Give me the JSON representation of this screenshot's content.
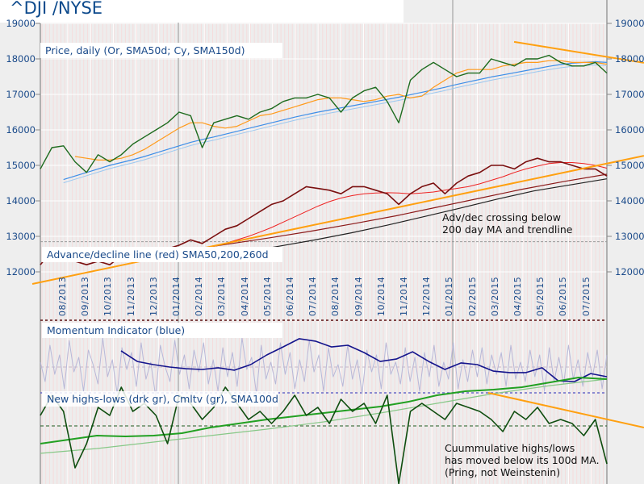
{
  "header": {
    "title": "^DJI /NYSE"
  },
  "panels": {
    "price_label": "Price, daily (Or, SMA50d; Cy, SMA150d)",
    "ad_label": "Advance/decline line (red) SMA50,200,260d",
    "momentum_label": "Momentum Indicator (blue)",
    "hl_label": "New highs-lows (drk gr), Cmltv (gr), SMA100d"
  },
  "annotations": {
    "ad_note": "Adv/dec crossing below\n200 day MA and trendline",
    "hl_note": "Cuummulative highs/lows\nhas moved below its 100d MA.\n(Pring, not Weinstenin)"
  },
  "colors": {
    "title": "#0d4a8c",
    "price": "#1e6b1e",
    "sma50": "#ff9a1a",
    "sma150": "#3d8ee8",
    "ad": "#7a0f0f",
    "ad_sma50": "#ee2222",
    "ad_sma200": "#8b1a1a",
    "ad_sma260": "#222222",
    "trend": "#ffa010",
    "momentum": "#14148c",
    "momentum_raw": "#b8b8d8",
    "hl": "#0f4d0f",
    "hl_cum": "#22a022",
    "hl_sma": "#88c888"
  },
  "chart_data": {
    "type": "line",
    "title": "^DJI /NYSE",
    "x_unit": "months from mid-07/2013",
    "xlim": [
      0,
      24
    ],
    "x_tick_labels": [
      "08/2013",
      "09/2013",
      "10/2013",
      "11/2013",
      "12/2013",
      "01/2014",
      "02/2014",
      "03/2014",
      "04/2014",
      "05/2014",
      "06/2014",
      "07/2014",
      "08/2014",
      "09/2014",
      "10/2014",
      "11/2014",
      "12/2014",
      "01/2015",
      "02/2015",
      "03/2015",
      "04/2015",
      "05/2015",
      "06/2015",
      "07/2015"
    ],
    "y_tick_labels": [
      "19000",
      "18000",
      "17000",
      "16000",
      "15000",
      "14000",
      "13000",
      "12000"
    ],
    "ylim": [
      11800,
      19000
    ],
    "price_series": [
      {
        "name": "Price",
        "x_start": 0,
        "x_step": 0.4898,
        "values": [
          14900,
          15500,
          15550,
          15100,
          14800,
          15300,
          15100,
          15300,
          15600,
          15800,
          16000,
          16200,
          16500,
          16400,
          15500,
          16200,
          16300,
          16400,
          16300,
          16500,
          16600,
          16800,
          16900,
          16900,
          17000,
          16900,
          16500,
          16900,
          17100,
          17200,
          16800,
          16200,
          17400,
          17700,
          17900,
          17700,
          17500,
          17600,
          17600,
          18000,
          17900,
          17800,
          18000,
          18000,
          18100,
          17900,
          17800,
          17800,
          17900,
          17600
        ]
      },
      {
        "name": "SMA50d",
        "x_start": 1.469,
        "x_step": 0.4898,
        "values": [
          15250,
          15200,
          15150,
          15150,
          15200,
          15300,
          15450,
          15650,
          15850,
          16050,
          16200,
          16200,
          16100,
          16050,
          16100,
          16250,
          16400,
          16450,
          16550,
          16650,
          16750,
          16850,
          16900,
          16900,
          16850,
          16800,
          16850,
          16950,
          17000,
          16900,
          16950,
          17200,
          17400,
          17600,
          17700,
          17700,
          17700,
          17800,
          17850,
          17900,
          17900,
          17950,
          17950,
          17900,
          17900,
          17900,
          17850
        ]
      },
      {
        "name": "SMA150d",
        "x_start": 0.98,
        "x_step": 0.4898,
        "values": [
          14600,
          14700,
          14800,
          14900,
          15000,
          15080,
          15160,
          15250,
          15350,
          15450,
          15550,
          15650,
          15730,
          15800,
          15880,
          15960,
          16040,
          16120,
          16200,
          16280,
          16360,
          16430,
          16500,
          16560,
          16620,
          16680,
          16740,
          16800,
          16860,
          16920,
          16990,
          17060,
          17130,
          17200,
          17280,
          17350,
          17420,
          17490,
          17550,
          17610,
          17670,
          17730,
          17790,
          17840,
          17880,
          17900,
          17920,
          17900
        ]
      },
      {
        "name": "Advance/decline line",
        "x_start": 0,
        "x_step": 0.4898,
        "values": [
          12200,
          12600,
          12550,
          12300,
          12200,
          12300,
          12200,
          12450,
          12500,
          12450,
          12500,
          12650,
          12750,
          12900,
          12800,
          13000,
          13200,
          13300,
          13500,
          13700,
          13900,
          14000,
          14200,
          14400,
          14350,
          14300,
          14200,
          14400,
          14400,
          14300,
          14200,
          13900,
          14200,
          14400,
          14500,
          14200,
          14500,
          14700,
          14800,
          15000,
          15000,
          14900,
          15100,
          15200,
          15100,
          15100,
          15000,
          14900,
          14900,
          14700
        ]
      },
      {
        "name": "A/D SMA50",
        "x_start": 1.469,
        "x_step": 0.4898,
        "values": [
          12400,
          12400,
          12380,
          12350,
          12350,
          12380,
          12420,
          12450,
          12480,
          12520,
          12580,
          12650,
          12720,
          12800,
          12900,
          13000,
          13120,
          13250,
          13400,
          13550,
          13700,
          13850,
          13980,
          14080,
          14150,
          14200,
          14220,
          14230,
          14220,
          14200,
          14220,
          14250,
          14300,
          14350,
          14400,
          14480,
          14580,
          14680,
          14800,
          14900,
          14980,
          15050,
          15080,
          15080,
          15050,
          15000,
          14920
        ]
      },
      {
        "name": "A/D SMA200",
        "x_start": 6.15,
        "x_step": 1.785,
        "values": [
          12600,
          12780,
          12960,
          13150,
          13360,
          13580,
          13830,
          14080,
          14330,
          14550,
          14750
        ]
      },
      {
        "name": "A/D SMA260",
        "x_start": 7.0,
        "x_step": 1.545,
        "values": [
          12400,
          12550,
          12720,
          12900,
          13100,
          13320,
          13560,
          13800,
          14050,
          14280,
          14450,
          14620
        ]
      }
    ],
    "trendlines": [
      {
        "name": "price-trendline",
        "from": [
          20.07,
          18480
        ],
        "to": [
          25.57,
          17890
        ]
      },
      {
        "name": "ad-trendline",
        "from": [
          -0.34,
          11660
        ],
        "to": [
          25.57,
          15270
        ]
      }
    ],
    "reference_level": 12850,
    "momentum": {
      "raw": {
        "x_start": 0,
        "x_step": 0.2034,
        "values": [
          0.2,
          -0.6,
          0.9,
          -0.3,
          0.5,
          -0.9,
          1.1,
          -0.2,
          0.4,
          -1.0,
          0.7,
          0.1,
          -0.7,
          1.2,
          -0.4,
          0.3,
          -1.1,
          0.8,
          -0.1,
          0.6,
          -0.8,
          1.0,
          -0.5,
          0.2,
          -1.2,
          0.9,
          0.0,
          -0.6,
          1.1,
          -0.3,
          0.5,
          -0.9,
          0.7,
          -0.2,
          1.0,
          -0.7,
          0.3,
          -1.0,
          0.8,
          -0.4,
          0.6,
          -0.8,
          1.2,
          -0.1,
          0.4,
          -1.1,
          0.9,
          -0.5,
          0.2,
          -0.7,
          1.0,
          -0.3,
          0.6,
          -0.9,
          0.3,
          -0.6,
          1.1,
          -0.2,
          0.5,
          -1.0,
          0.8,
          -0.4,
          0.1,
          -0.8,
          0.9,
          -0.5,
          0.3,
          -1.1,
          0.7,
          -0.2,
          0.5,
          -0.9,
          1.0,
          -0.3,
          0.2,
          -0.7,
          0.8,
          -0.6,
          0.4,
          -1.0,
          0.6,
          -0.4,
          0.9,
          -0.8,
          0.2,
          -0.5,
          1.0,
          -0.9,
          0.3,
          -0.6,
          0.7,
          -0.4,
          0.8,
          -0.7,
          0.5,
          -0.3,
          0.6,
          -0.8,
          0.9,
          -0.5,
          0.2,
          -0.6,
          0.7,
          -0.4,
          0.5,
          -1.0,
          0.8,
          -0.6,
          0.4,
          -0.7,
          0.9,
          -0.5,
          0.3,
          -0.8,
          0.6,
          -0.4,
          0.7,
          -0.9,
          0.5
        ]
      },
      "smoothed": {
        "x_start": 3.42,
        "x_step": 0.686,
        "values": [
          0.67,
          0.23,
          0.1,
          0,
          -0.07,
          -0.1,
          -0.03,
          -0.13,
          0.1,
          0.5,
          0.83,
          1.17,
          1.07,
          0.83,
          0.9,
          0.6,
          0.23,
          0.33,
          0.63,
          0.23,
          -0.1,
          0.17,
          0.1,
          -0.17,
          -0.23,
          -0.23,
          -0.03,
          -0.57,
          -0.6,
          -0.27,
          -0.4
        ]
      }
    },
    "highs_lows": {
      "net": {
        "x_start": 0,
        "x_step": 0.4898,
        "values": [
          0.65,
          1.9,
          0.9,
          -2.6,
          -1.1,
          1.15,
          0.65,
          2.4,
          0.9,
          1.4,
          0.65,
          -1.1,
          1.9,
          1.4,
          0.4,
          1.15,
          2.4,
          1.4,
          0.4,
          0.9,
          0.15,
          0.9,
          1.9,
          0.65,
          1.15,
          0.15,
          1.65,
          0.9,
          1.4,
          0.15,
          1.9,
          -3.6,
          0.9,
          1.4,
          0.9,
          0.4,
          1.4,
          1.15,
          0.9,
          0.4,
          -0.35,
          0.9,
          0.4,
          1.15,
          0.15,
          0.4,
          0.15,
          -0.6,
          0.4,
          -2.35
        ]
      },
      "cumulative": {
        "x_start": 0,
        "x_step": 1.2,
        "values": [
          -1.1,
          -0.85,
          -0.6,
          -0.65,
          -0.6,
          -0.45,
          -0.1,
          0.15,
          0.4,
          0.6,
          0.8,
          1.0,
          1.2,
          1.5,
          1.9,
          2.15,
          2.25,
          2.4,
          2.7,
          3.0,
          2.9
        ]
      },
      "sma100": {
        "x_start": 0,
        "x_step": 2.4,
        "values": [
          -1.7,
          -1.4,
          -1.0,
          -0.6,
          -0.2,
          0.25,
          0.8,
          1.4,
          2.0,
          2.5,
          2.9
        ]
      },
      "trendline": {
        "from": [
          18.97,
          2.05
        ],
        "to": [
          25.57,
          -0.1
        ]
      }
    }
  }
}
